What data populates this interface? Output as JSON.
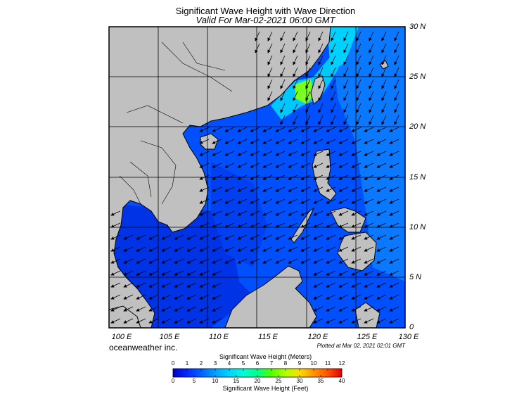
{
  "title": "Significant Wave Height with Wave Direction",
  "subtitle": "Valid For Mar-02-2021 06:00 GMT",
  "brand": "oceanweather inc.",
  "plotted": "Plotted at Mar 02, 2021 02:01 GMT",
  "map": {
    "lon_range": [
      100,
      130
    ],
    "lat_range": [
      0,
      30
    ],
    "lat_labels": [
      "30 N",
      "25 N",
      "20 N",
      "15 N",
      "10 N",
      "5 N",
      "0"
    ],
    "lon_labels": [
      "100 E",
      "105 E",
      "110 E",
      "115 E",
      "120 E",
      "125 E",
      "130 E"
    ],
    "land_color": "#c0c0c0",
    "dominant_wave_direction": "from northeast toward southwest"
  },
  "colorbar": {
    "title_meters": "Significant Wave Height (Meters)",
    "title_feet": "Significant Wave Height (Feet)",
    "meter_ticks": [
      "0",
      "1",
      "2",
      "3",
      "4",
      "5",
      "6",
      "7",
      "8",
      "9",
      "10",
      "11",
      "12"
    ],
    "feet_ticks": [
      "0",
      "5",
      "10",
      "15",
      "20",
      "25",
      "30",
      "35",
      "40"
    ],
    "colors": [
      "#0000c8",
      "#0028ff",
      "#0064ff",
      "#00a0ff",
      "#00d2ff",
      "#00ffd2",
      "#00ff8c",
      "#50ff00",
      "#b4ff00",
      "#ffdc00",
      "#ff9600",
      "#ff5000",
      "#e60000"
    ]
  }
}
